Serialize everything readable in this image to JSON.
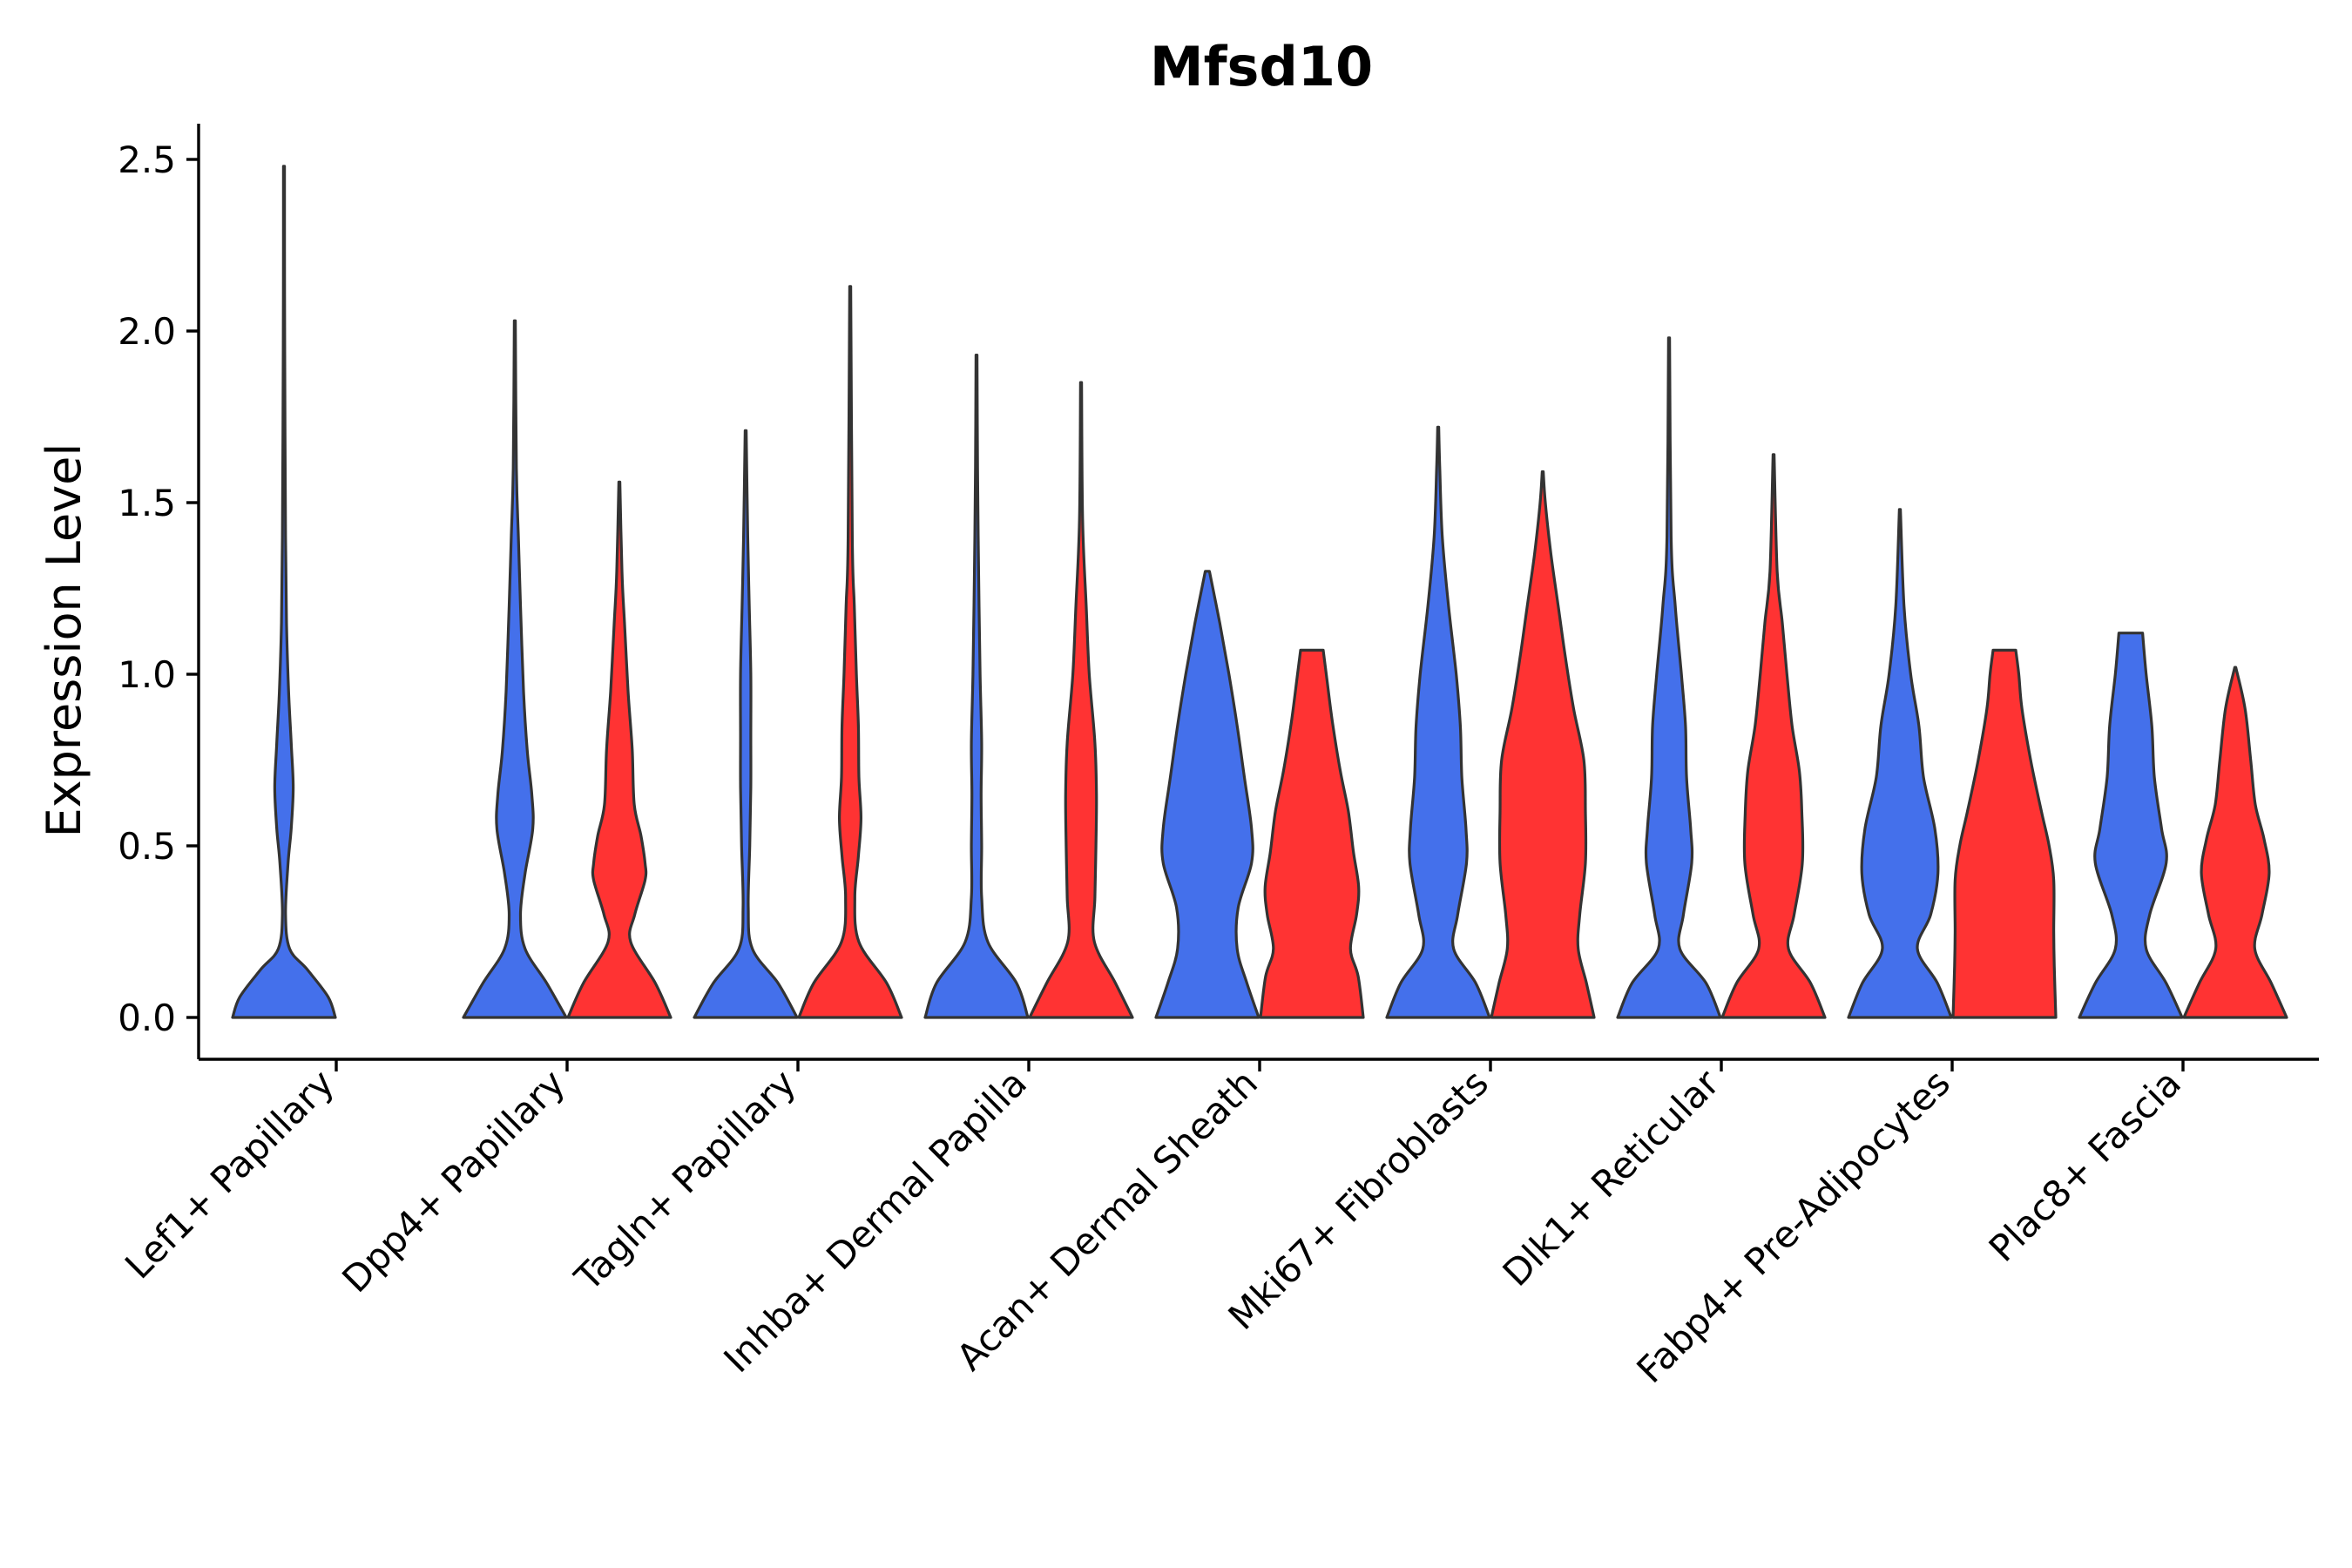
{
  "chart_data": {
    "type": "violin",
    "title": "Mfsd10",
    "xlabel": "",
    "ylabel": "Expression Level",
    "ylim": [
      -0.13,
      2.6
    ],
    "yticks": [
      "0.0",
      "0.5",
      "1.0",
      "1.5",
      "2.0",
      "2.5"
    ],
    "ytick_values": [
      0.0,
      0.5,
      1.0,
      1.5,
      2.0,
      2.5
    ],
    "grid": false,
    "legend": "none",
    "colors": {
      "group1": "#4470EB",
      "group2": "#FF3333",
      "outline": "#333333"
    },
    "categories": [
      "Lef1+ Papillary",
      "Dpp4+ Papillary",
      "Tagln+ Papillary",
      "Inhba+ Dermal Papilla",
      "Acan+ Dermal Sheath",
      "Mki67+ Fibroblasts",
      "Dlk1+ Reticular",
      "Fabp4+ Pre-Adipocytes",
      "Plac8+ Fascia"
    ],
    "violins": [
      {
        "category": "Lef1+ Papillary",
        "group": "group1",
        "max": 2.48,
        "profile": [
          [
            0.0,
            1.0
          ],
          [
            0.06,
            0.86
          ],
          [
            0.14,
            0.45
          ],
          [
            0.2,
            0.11
          ],
          [
            0.3,
            0.03
          ],
          [
            0.45,
            0.08
          ],
          [
            0.55,
            0.14
          ],
          [
            0.67,
            0.18
          ],
          [
            0.8,
            0.14
          ],
          [
            0.95,
            0.09
          ],
          [
            1.15,
            0.05
          ],
          [
            1.4,
            0.03
          ],
          [
            1.7,
            0.02
          ],
          [
            2.1,
            0.012
          ],
          [
            2.48,
            0.01
          ]
        ]
      },
      {
        "category": "Dpp4+ Papillary",
        "group": "group1",
        "max": 2.03,
        "profile": [
          [
            0.0,
            1.0
          ],
          [
            0.1,
            0.62
          ],
          [
            0.2,
            0.2
          ],
          [
            0.3,
            0.11
          ],
          [
            0.42,
            0.2
          ],
          [
            0.55,
            0.35
          ],
          [
            0.65,
            0.33
          ],
          [
            0.78,
            0.24
          ],
          [
            0.95,
            0.17
          ],
          [
            1.2,
            0.11
          ],
          [
            1.4,
            0.07
          ],
          [
            1.6,
            0.03
          ],
          [
            2.03,
            0.01
          ]
        ]
      },
      {
        "category": "Dpp4+ Papillary",
        "group": "group2",
        "max": 1.56,
        "profile": [
          [
            0.0,
            1.0
          ],
          [
            0.1,
            0.7
          ],
          [
            0.22,
            0.22
          ],
          [
            0.3,
            0.3
          ],
          [
            0.4,
            0.5
          ],
          [
            0.45,
            0.5
          ],
          [
            0.53,
            0.42
          ],
          [
            0.62,
            0.29
          ],
          [
            0.78,
            0.25
          ],
          [
            0.95,
            0.17
          ],
          [
            1.15,
            0.1
          ],
          [
            1.3,
            0.05
          ],
          [
            1.56,
            0.01
          ]
        ]
      },
      {
        "category": "Tagln+ Papillary",
        "group": "group1",
        "max": 1.71,
        "profile": [
          [
            0.0,
            1.0
          ],
          [
            0.1,
            0.63
          ],
          [
            0.2,
            0.13
          ],
          [
            0.32,
            0.05
          ],
          [
            0.5,
            0.08
          ],
          [
            0.67,
            0.1
          ],
          [
            0.82,
            0.1
          ],
          [
            1.0,
            0.1
          ],
          [
            1.2,
            0.07
          ],
          [
            1.4,
            0.04
          ],
          [
            1.71,
            0.01
          ]
        ]
      },
      {
        "category": "Tagln+ Papillary",
        "group": "group2",
        "max": 2.13,
        "profile": [
          [
            0.0,
            1.0
          ],
          [
            0.1,
            0.71
          ],
          [
            0.22,
            0.17
          ],
          [
            0.35,
            0.09
          ],
          [
            0.47,
            0.16
          ],
          [
            0.58,
            0.21
          ],
          [
            0.7,
            0.17
          ],
          [
            0.85,
            0.16
          ],
          [
            1.0,
            0.12
          ],
          [
            1.2,
            0.08
          ],
          [
            1.4,
            0.04
          ],
          [
            2.13,
            0.01
          ]
        ]
      },
      {
        "category": "Inhba+ Dermal Papilla",
        "group": "group1",
        "max": 1.93,
        "profile": [
          [
            0.0,
            1.0
          ],
          [
            0.1,
            0.78
          ],
          [
            0.22,
            0.22
          ],
          [
            0.35,
            0.1
          ],
          [
            0.5,
            0.1
          ],
          [
            0.65,
            0.09
          ],
          [
            0.8,
            0.1
          ],
          [
            1.0,
            0.07
          ],
          [
            1.3,
            0.04
          ],
          [
            1.6,
            0.02
          ],
          [
            1.93,
            0.01
          ]
        ]
      },
      {
        "category": "Inhba+ Dermal Papilla",
        "group": "group2",
        "max": 1.85,
        "profile": [
          [
            0.0,
            1.0
          ],
          [
            0.1,
            0.67
          ],
          [
            0.22,
            0.26
          ],
          [
            0.35,
            0.27
          ],
          [
            0.5,
            0.29
          ],
          [
            0.65,
            0.3
          ],
          [
            0.8,
            0.27
          ],
          [
            1.0,
            0.16
          ],
          [
            1.2,
            0.1
          ],
          [
            1.45,
            0.03
          ],
          [
            1.85,
            0.01
          ]
        ]
      },
      {
        "category": "Acan+ Dermal Sheath",
        "group": "group1",
        "max": 1.3,
        "profile": [
          [
            0.0,
            1.0
          ],
          [
            0.1,
            0.77
          ],
          [
            0.2,
            0.58
          ],
          [
            0.32,
            0.6
          ],
          [
            0.45,
            0.86
          ],
          [
            0.55,
            0.86
          ],
          [
            0.7,
            0.72
          ],
          [
            0.85,
            0.58
          ],
          [
            1.0,
            0.42
          ],
          [
            1.15,
            0.24
          ],
          [
            1.3,
            0.04
          ]
        ]
      },
      {
        "category": "Acan+ Dermal Sheath",
        "group": "group2",
        "max": 1.07,
        "profile": [
          [
            0.0,
            1.0
          ],
          [
            0.12,
            0.9
          ],
          [
            0.2,
            0.75
          ],
          [
            0.3,
            0.87
          ],
          [
            0.38,
            0.91
          ],
          [
            0.48,
            0.81
          ],
          [
            0.6,
            0.71
          ],
          [
            0.72,
            0.55
          ],
          [
            0.86,
            0.4
          ],
          [
            1.0,
            0.28
          ],
          [
            1.07,
            0.22
          ]
        ]
      },
      {
        "category": "Mki67+ Fibroblasts",
        "group": "group1",
        "max": 1.72,
        "profile": [
          [
            0.0,
            1.0
          ],
          [
            0.1,
            0.73
          ],
          [
            0.2,
            0.3
          ],
          [
            0.3,
            0.38
          ],
          [
            0.45,
            0.55
          ],
          [
            0.55,
            0.54
          ],
          [
            0.7,
            0.46
          ],
          [
            0.85,
            0.43
          ],
          [
            1.0,
            0.35
          ],
          [
            1.2,
            0.2
          ],
          [
            1.4,
            0.08
          ],
          [
            1.6,
            0.03
          ],
          [
            1.72,
            0.01
          ]
        ]
      },
      {
        "category": "Mki67+ Fibroblasts",
        "group": "group2",
        "max": 1.59,
        "profile": [
          [
            0.0,
            1.0
          ],
          [
            0.1,
            0.85
          ],
          [
            0.2,
            0.69
          ],
          [
            0.3,
            0.72
          ],
          [
            0.45,
            0.83
          ],
          [
            0.6,
            0.83
          ],
          [
            0.75,
            0.8
          ],
          [
            0.9,
            0.6
          ],
          [
            1.05,
            0.44
          ],
          [
            1.2,
            0.3
          ],
          [
            1.35,
            0.16
          ],
          [
            1.5,
            0.05
          ],
          [
            1.59,
            0.01
          ]
        ]
      },
      {
        "category": "Dlk1+ Reticular",
        "group": "group1",
        "max": 1.98,
        "profile": [
          [
            0.0,
            1.0
          ],
          [
            0.1,
            0.72
          ],
          [
            0.2,
            0.21
          ],
          [
            0.3,
            0.28
          ],
          [
            0.45,
            0.44
          ],
          [
            0.55,
            0.42
          ],
          [
            0.7,
            0.34
          ],
          [
            0.85,
            0.32
          ],
          [
            1.0,
            0.24
          ],
          [
            1.2,
            0.12
          ],
          [
            1.4,
            0.04
          ],
          [
            1.98,
            0.01
          ]
        ]
      },
      {
        "category": "Dlk1+ Reticular",
        "group": "group2",
        "max": 1.64,
        "profile": [
          [
            0.0,
            1.0
          ],
          [
            0.1,
            0.72
          ],
          [
            0.2,
            0.29
          ],
          [
            0.3,
            0.4
          ],
          [
            0.45,
            0.56
          ],
          [
            0.6,
            0.55
          ],
          [
            0.72,
            0.5
          ],
          [
            0.85,
            0.36
          ],
          [
            1.0,
            0.26
          ],
          [
            1.15,
            0.17
          ],
          [
            1.3,
            0.07
          ],
          [
            1.64,
            0.01
          ]
        ]
      },
      {
        "category": "Fabp4+ Pre-Adipocytes",
        "group": "group1",
        "max": 1.48,
        "profile": [
          [
            0.0,
            1.0
          ],
          [
            0.1,
            0.73
          ],
          [
            0.2,
            0.34
          ],
          [
            0.3,
            0.6
          ],
          [
            0.42,
            0.74
          ],
          [
            0.55,
            0.68
          ],
          [
            0.7,
            0.46
          ],
          [
            0.85,
            0.37
          ],
          [
            1.0,
            0.21
          ],
          [
            1.2,
            0.08
          ],
          [
            1.48,
            0.01
          ]
        ]
      },
      {
        "category": "Fabp4+ Pre-Adipocytes",
        "group": "group2",
        "max": 1.07,
        "profile": [
          [
            0.0,
            1.0
          ],
          [
            0.15,
            0.97
          ],
          [
            0.25,
            0.96
          ],
          [
            0.4,
            0.96
          ],
          [
            0.5,
            0.87
          ],
          [
            0.6,
            0.72
          ],
          [
            0.75,
            0.51
          ],
          [
            0.9,
            0.34
          ],
          [
            1.0,
            0.28
          ],
          [
            1.07,
            0.22
          ]
        ]
      },
      {
        "category": "Plac8+ Fascia",
        "group": "group1",
        "max": 1.12,
        "profile": [
          [
            0.0,
            1.0
          ],
          [
            0.1,
            0.69
          ],
          [
            0.2,
            0.3
          ],
          [
            0.3,
            0.37
          ],
          [
            0.45,
            0.69
          ],
          [
            0.55,
            0.6
          ],
          [
            0.7,
            0.46
          ],
          [
            0.85,
            0.41
          ],
          [
            1.0,
            0.3
          ],
          [
            1.12,
            0.23
          ]
        ]
      },
      {
        "category": "Plac8+ Fascia",
        "group": "group2",
        "max": 1.02,
        "profile": [
          [
            0.0,
            1.0
          ],
          [
            0.1,
            0.7
          ],
          [
            0.2,
            0.38
          ],
          [
            0.3,
            0.52
          ],
          [
            0.42,
            0.66
          ],
          [
            0.52,
            0.56
          ],
          [
            0.62,
            0.39
          ],
          [
            0.75,
            0.3
          ],
          [
            0.9,
            0.19
          ],
          [
            1.02,
            0.01
          ]
        ]
      }
    ]
  }
}
